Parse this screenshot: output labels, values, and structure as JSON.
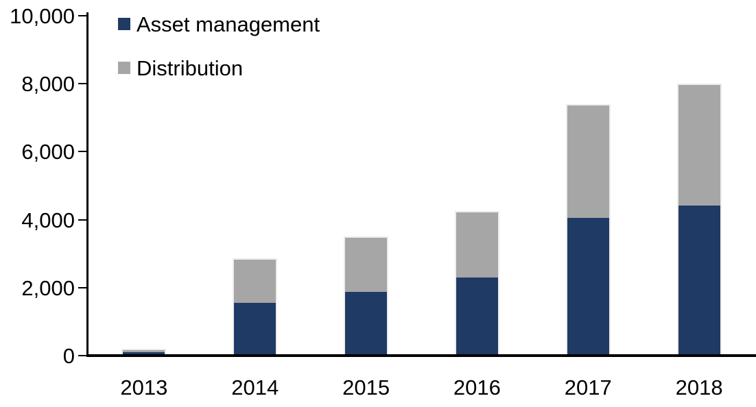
{
  "chart_data": {
    "type": "bar",
    "stacked": true,
    "title": "",
    "xlabel": "",
    "ylabel": "",
    "categories": [
      "2013",
      "2014",
      "2015",
      "2016",
      "2017",
      "2018"
    ],
    "series": [
      {
        "name": "Asset management",
        "color": "#1f3a64",
        "values": [
          100,
          1550,
          1880,
          2300,
          4050,
          4420
        ]
      },
      {
        "name": "Distribution",
        "color": "#a6a6a6",
        "values": [
          100,
          1310,
          1620,
          1950,
          3350,
          3580
        ]
      }
    ],
    "totals": [
      200,
      2860,
      3500,
      4250,
      7400,
      8000
    ],
    "ylim": [
      0,
      10000
    ],
    "yticks": {
      "values": [
        0,
        2000,
        4000,
        6000,
        8000,
        10000
      ],
      "labels": [
        "0",
        "2,000",
        "4,000",
        "6,000",
        "8,000",
        "10,000"
      ]
    },
    "grid": false,
    "legend_position": "top-left"
  },
  "colors": {
    "axis": "#000000",
    "background": "#ffffff",
    "bar_border": "#ececec",
    "text": "#000000"
  }
}
